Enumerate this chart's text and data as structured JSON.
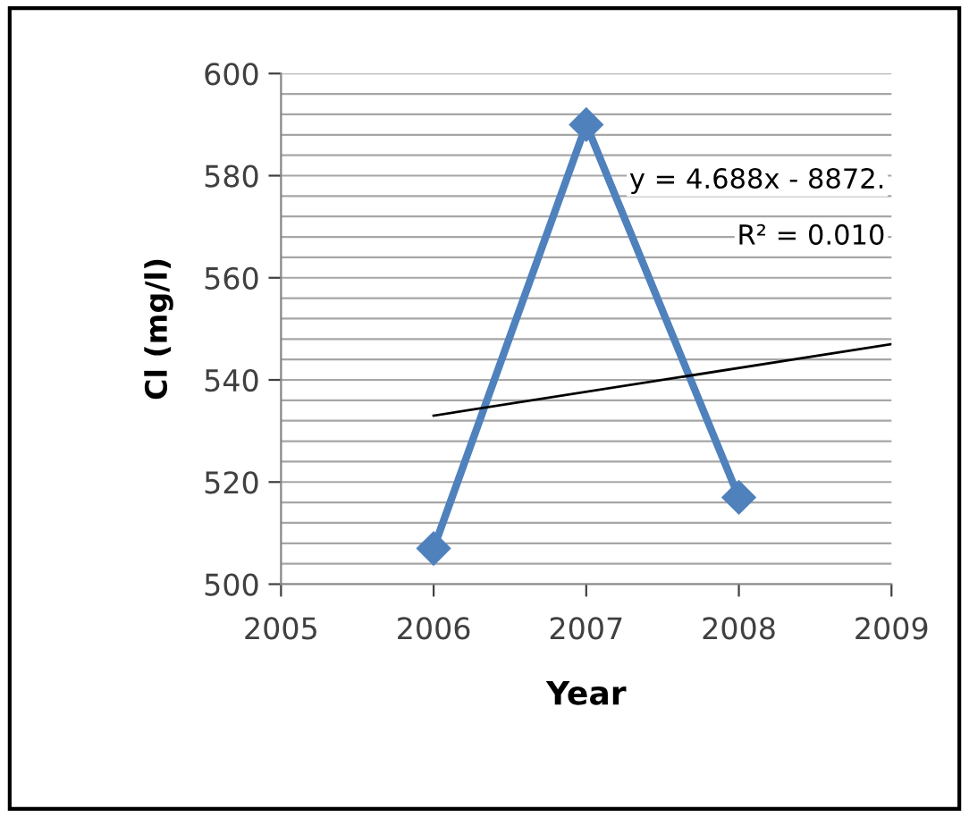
{
  "chart_data": {
    "type": "line",
    "xlabel": "Year",
    "ylabel": "Cl (mg/l)",
    "series": [
      {
        "x": [
          2006,
          2007,
          2008
        ],
        "values": [
          507,
          590,
          517
        ],
        "color": "#4f81bd",
        "marker": "diamond"
      },
      {
        "x": [
          2006,
          2009
        ],
        "values": [
          533,
          547
        ],
        "color": "#000000",
        "marker": "none"
      }
    ],
    "annotations": [
      "y = 4.688x - 8872.",
      "R² = 0.010"
    ],
    "xlim": [
      2005,
      2009
    ],
    "xticks": [
      2005,
      2006,
      2007,
      2008,
      2009
    ],
    "ylim": [
      500,
      600
    ],
    "yticks": [
      500,
      {
        "value": 504,
        "label": null
      },
      {
        "value": 508,
        "label": null
      },
      {
        "value": 512,
        "label": null
      },
      {
        "value": 516,
        "label": null
      },
      520,
      {
        "value": 524,
        "label": null
      },
      {
        "value": 528,
        "label": null
      },
      {
        "value": 532,
        "label": null
      },
      {
        "value": 536,
        "label": null
      },
      540,
      {
        "value": 544,
        "label": null
      },
      {
        "value": 548,
        "label": null
      },
      {
        "value": 552,
        "label": null
      },
      {
        "value": 556,
        "label": null
      },
      560,
      {
        "value": 564,
        "label": null
      },
      {
        "value": 568,
        "label": null
      },
      {
        "value": 572,
        "label": null
      },
      {
        "value": 576,
        "label": null
      },
      580,
      {
        "value": 584,
        "label": null
      },
      {
        "value": 588,
        "label": null
      },
      {
        "value": 592,
        "label": null
      },
      {
        "value": 596,
        "label": null
      },
      600
    ],
    "grid": "y"
  }
}
